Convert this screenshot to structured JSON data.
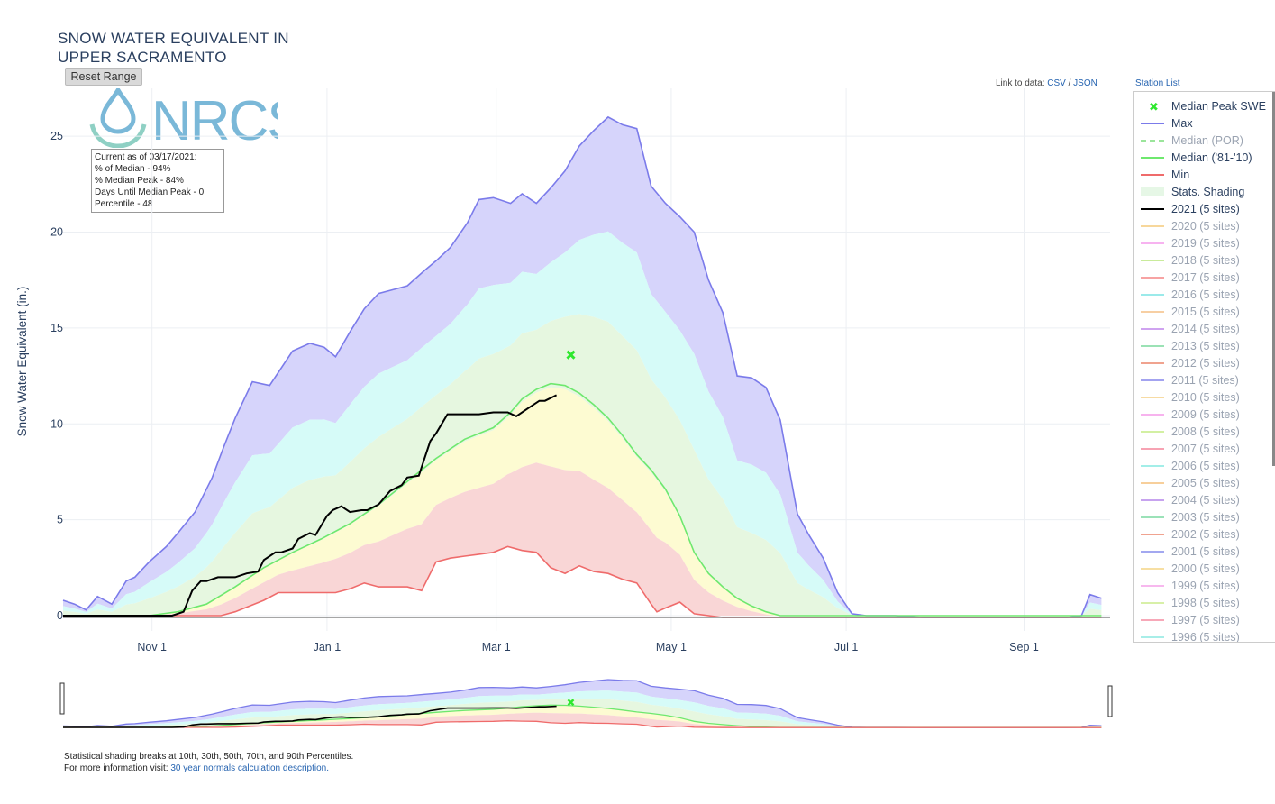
{
  "title_line1": "SNOW WATER EQUIVALENT IN",
  "title_line2": "UPPER SACRAMENTO",
  "reset_button": "Reset Range",
  "logo_text": "NRCS",
  "info_box": {
    "line1": "Current as of 03/17/2021:",
    "line2": "% of Median - 94%",
    "line3": "% Median Peak - 84%",
    "line4": "Days Until Median Peak - 0",
    "line5": "Percentile - 48"
  },
  "links": {
    "prefix": "Link to data:",
    "csv": "CSV",
    "sep": "/",
    "json": "JSON",
    "station_list": "Station List"
  },
  "legend": [
    {
      "label": "Median Peak SWE",
      "color": "#2ee82e",
      "kind": "marker",
      "dim": false
    },
    {
      "label": "Max",
      "color": "#7b7bea",
      "kind": "line",
      "dim": false
    },
    {
      "label": "Median (POR)",
      "color": "#9be59b",
      "kind": "dash",
      "dim": true
    },
    {
      "label": "Median ('81-'10)",
      "color": "#6ee86e",
      "kind": "line",
      "dim": false
    },
    {
      "label": "Min",
      "color": "#ef6b6b",
      "kind": "line",
      "dim": false
    },
    {
      "label": "Stats. Shading",
      "color": "#e6f7e6",
      "kind": "box",
      "dim": false
    },
    {
      "label": "2021 (5 sites)",
      "color": "#000000",
      "kind": "line",
      "dim": false
    },
    {
      "label": "2020 (5 sites)",
      "color": "#f7d79b",
      "kind": "line",
      "dim": true
    },
    {
      "label": "2019 (5 sites)",
      "color": "#f7b3f0",
      "kind": "line",
      "dim": true
    },
    {
      "label": "2018 (5 sites)",
      "color": "#c9eb9b",
      "kind": "line",
      "dim": true
    },
    {
      "label": "2017 (5 sites)",
      "color": "#f7a3a3",
      "kind": "line",
      "dim": true
    },
    {
      "label": "2016 (5 sites)",
      "color": "#9beaea",
      "kind": "line",
      "dim": true
    },
    {
      "label": "2015 (5 sites)",
      "color": "#f7cfa3",
      "kind": "line",
      "dim": true
    },
    {
      "label": "2014 (5 sites)",
      "color": "#cfa3f0",
      "kind": "line",
      "dim": true
    },
    {
      "label": "2013 (5 sites)",
      "color": "#9be2b5",
      "kind": "line",
      "dim": true
    },
    {
      "label": "2012 (5 sites)",
      "color": "#f0a38f",
      "kind": "line",
      "dim": true
    },
    {
      "label": "2011 (5 sites)",
      "color": "#a3a3f0",
      "kind": "line",
      "dim": true
    },
    {
      "label": "2010 (5 sites)",
      "color": "#f7dba3",
      "kind": "line",
      "dim": true
    },
    {
      "label": "2009 (5 sites)",
      "color": "#f7b3ee",
      "kind": "line",
      "dim": true
    },
    {
      "label": "2008 (5 sites)",
      "color": "#d3f0a3",
      "kind": "line",
      "dim": true
    },
    {
      "label": "2007 (5 sites)",
      "color": "#f7a3b3",
      "kind": "line",
      "dim": true
    },
    {
      "label": "2006 (5 sites)",
      "color": "#a3eee8",
      "kind": "line",
      "dim": true
    },
    {
      "label": "2005 (5 sites)",
      "color": "#f7cf9b",
      "kind": "line",
      "dim": true
    },
    {
      "label": "2004 (5 sites)",
      "color": "#c7a3ef",
      "kind": "line",
      "dim": true
    },
    {
      "label": "2003 (5 sites)",
      "color": "#9be2b8",
      "kind": "line",
      "dim": true
    },
    {
      "label": "2002 (5 sites)",
      "color": "#f0a390",
      "kind": "line",
      "dim": true
    },
    {
      "label": "2001 (5 sites)",
      "color": "#a3a8f0",
      "kind": "line",
      "dim": true
    },
    {
      "label": "2000 (5 sites)",
      "color": "#f7dfa3",
      "kind": "line",
      "dim": true
    },
    {
      "label": "1999 (5 sites)",
      "color": "#f7b8ee",
      "kind": "line",
      "dim": true
    },
    {
      "label": "1998 (5 sites)",
      "color": "#d8f0a8",
      "kind": "line",
      "dim": true
    },
    {
      "label": "1997 (5 sites)",
      "color": "#f7a8b8",
      "kind": "line",
      "dim": true
    },
    {
      "label": "1996 (5 sites)",
      "color": "#a8eee8",
      "kind": "line",
      "dim": true
    }
  ],
  "footer": {
    "line1": "Statistical shading breaks at 10th, 30th, 50th, 70th, and 90th Percentiles.",
    "line2_prefix": "For more information visit:",
    "line2_link": "30 year normals calculation description."
  },
  "chart_data": {
    "type": "area",
    "ylabel": "Snow Water Equivalent (in.)",
    "ylim": [
      -0.8,
      27.5
    ],
    "yticks": [
      0,
      5,
      10,
      15,
      20,
      25
    ],
    "xdomain": [
      "Oct 1",
      "Sep 30"
    ],
    "xticks": [
      {
        "label": "Nov 1",
        "day": 31
      },
      {
        "label": "Jan 1",
        "day": 92
      },
      {
        "label": "Mar 1",
        "day": 151
      },
      {
        "label": "May 1",
        "day": 212
      },
      {
        "label": "Jul 1",
        "day": 273
      },
      {
        "label": "Sep 1",
        "day": 335
      }
    ],
    "grid": true,
    "shading_percentiles": [
      10,
      30,
      50,
      70,
      90
    ],
    "median_peak": {
      "day": 177,
      "value": 13.6
    },
    "series": [
      {
        "name": "Max",
        "color": "#7b7bea",
        "x": [
          0,
          4,
          8,
          12,
          17,
          22,
          25,
          30,
          36,
          40,
          46,
          52,
          56,
          60,
          66,
          72,
          80,
          86,
          91,
          95,
          100,
          105,
          110,
          115,
          120,
          126,
          130,
          135,
          141,
          145,
          150,
          156,
          160,
          165,
          170,
          175,
          180,
          185,
          190,
          195,
          200,
          205,
          210,
          215,
          220,
          225,
          230,
          235,
          240,
          245,
          250,
          256,
          260,
          265,
          270,
          275,
          280,
          284,
          290,
          300,
          310,
          320,
          335,
          350,
          355,
          358,
          362
        ],
        "y": [
          0.8,
          0.6,
          0.3,
          1.0,
          0.6,
          1.8,
          2.0,
          2.8,
          3.6,
          4.3,
          5.4,
          7.2,
          8.8,
          10.3,
          12.2,
          12.0,
          13.8,
          14.2,
          14.0,
          13.5,
          14.8,
          16.0,
          16.8,
          17.0,
          17.2,
          18.0,
          18.5,
          19.2,
          20.5,
          21.7,
          21.8,
          21.5,
          22.0,
          21.5,
          22.3,
          23.2,
          24.5,
          25.3,
          26.0,
          25.6,
          25.4,
          22.4,
          21.5,
          20.8,
          20.0,
          17.5,
          15.8,
          12.5,
          12.4,
          11.9,
          10.2,
          5.3,
          4.2,
          3.0,
          1.2,
          0.1,
          0.0,
          0.0,
          0.0,
          -0.1,
          -0.1,
          -0.1,
          -0.1,
          -0.1,
          0.0,
          1.1,
          0.9
        ]
      },
      {
        "name": "Median ('81-'10)",
        "color": "#6ee86e",
        "x": [
          0,
          30,
          40,
          50,
          60,
          70,
          80,
          90,
          100,
          110,
          120,
          130,
          140,
          150,
          156,
          160,
          165,
          170,
          175,
          180,
          185,
          190,
          195,
          200,
          205,
          210,
          215,
          220,
          225,
          230,
          235,
          240,
          245,
          250,
          255,
          260,
          265,
          270,
          275,
          285,
          300,
          320,
          340,
          362
        ],
        "y": [
          0,
          0,
          0.2,
          0.6,
          1.5,
          2.5,
          3.3,
          4.0,
          4.8,
          5.8,
          7.0,
          8.2,
          9.2,
          9.8,
          10.6,
          11.3,
          11.8,
          12.1,
          12.0,
          11.6,
          11.0,
          10.3,
          9.4,
          8.4,
          7.6,
          6.6,
          5.2,
          3.3,
          2.2,
          1.5,
          0.9,
          0.5,
          0.2,
          0.0,
          0,
          0,
          0,
          0,
          0,
          0,
          0,
          0,
          0,
          0
        ]
      },
      {
        "name": "Min",
        "color": "#ef6b6b",
        "x": [
          0,
          55,
          60,
          70,
          75,
          80,
          90,
          95,
          100,
          105,
          110,
          120,
          125,
          130,
          135,
          140,
          145,
          150,
          155,
          160,
          165,
          170,
          175,
          180,
          185,
          190,
          195,
          200,
          205,
          207,
          210,
          215,
          220,
          230,
          240,
          250,
          270,
          300,
          330,
          362
        ],
        "y": [
          0,
          0,
          0.2,
          0.8,
          1.2,
          1.2,
          1.2,
          1.2,
          1.4,
          1.7,
          1.5,
          1.5,
          1.3,
          2.8,
          3.0,
          3.1,
          3.2,
          3.3,
          3.6,
          3.4,
          3.3,
          2.5,
          2.2,
          2.6,
          2.3,
          2.2,
          1.9,
          1.7,
          0.6,
          0.2,
          0.4,
          0.7,
          0.1,
          -0.1,
          -0.1,
          -0.1,
          -0.1,
          -0.1,
          -0.1,
          -0.1
        ]
      },
      {
        "name": "2021 (5 sites)",
        "color": "#000000",
        "x": [
          0,
          38,
          42,
          45,
          48,
          50,
          54,
          58,
          60,
          64,
          68,
          70,
          74,
          76,
          80,
          82,
          86,
          88,
          92,
          94,
          97,
          100,
          104,
          106,
          110,
          114,
          118,
          120,
          124,
          128,
          130,
          134,
          140,
          145,
          150,
          155,
          158,
          162,
          166,
          168,
          172
        ],
        "y": [
          0,
          0,
          0.2,
          1.3,
          1.8,
          1.8,
          2.0,
          2.0,
          2.0,
          2.2,
          2.3,
          2.9,
          3.3,
          3.3,
          3.5,
          4.0,
          4.3,
          4.2,
          5.2,
          5.5,
          5.7,
          5.4,
          5.5,
          5.5,
          5.8,
          6.5,
          6.8,
          7.2,
          7.3,
          9.1,
          9.5,
          10.5,
          10.5,
          10.5,
          10.6,
          10.6,
          10.4,
          10.8,
          11.2,
          11.2,
          11.5
        ]
      }
    ],
    "bands_note": "Percentile shading fills between Min and Max"
  }
}
